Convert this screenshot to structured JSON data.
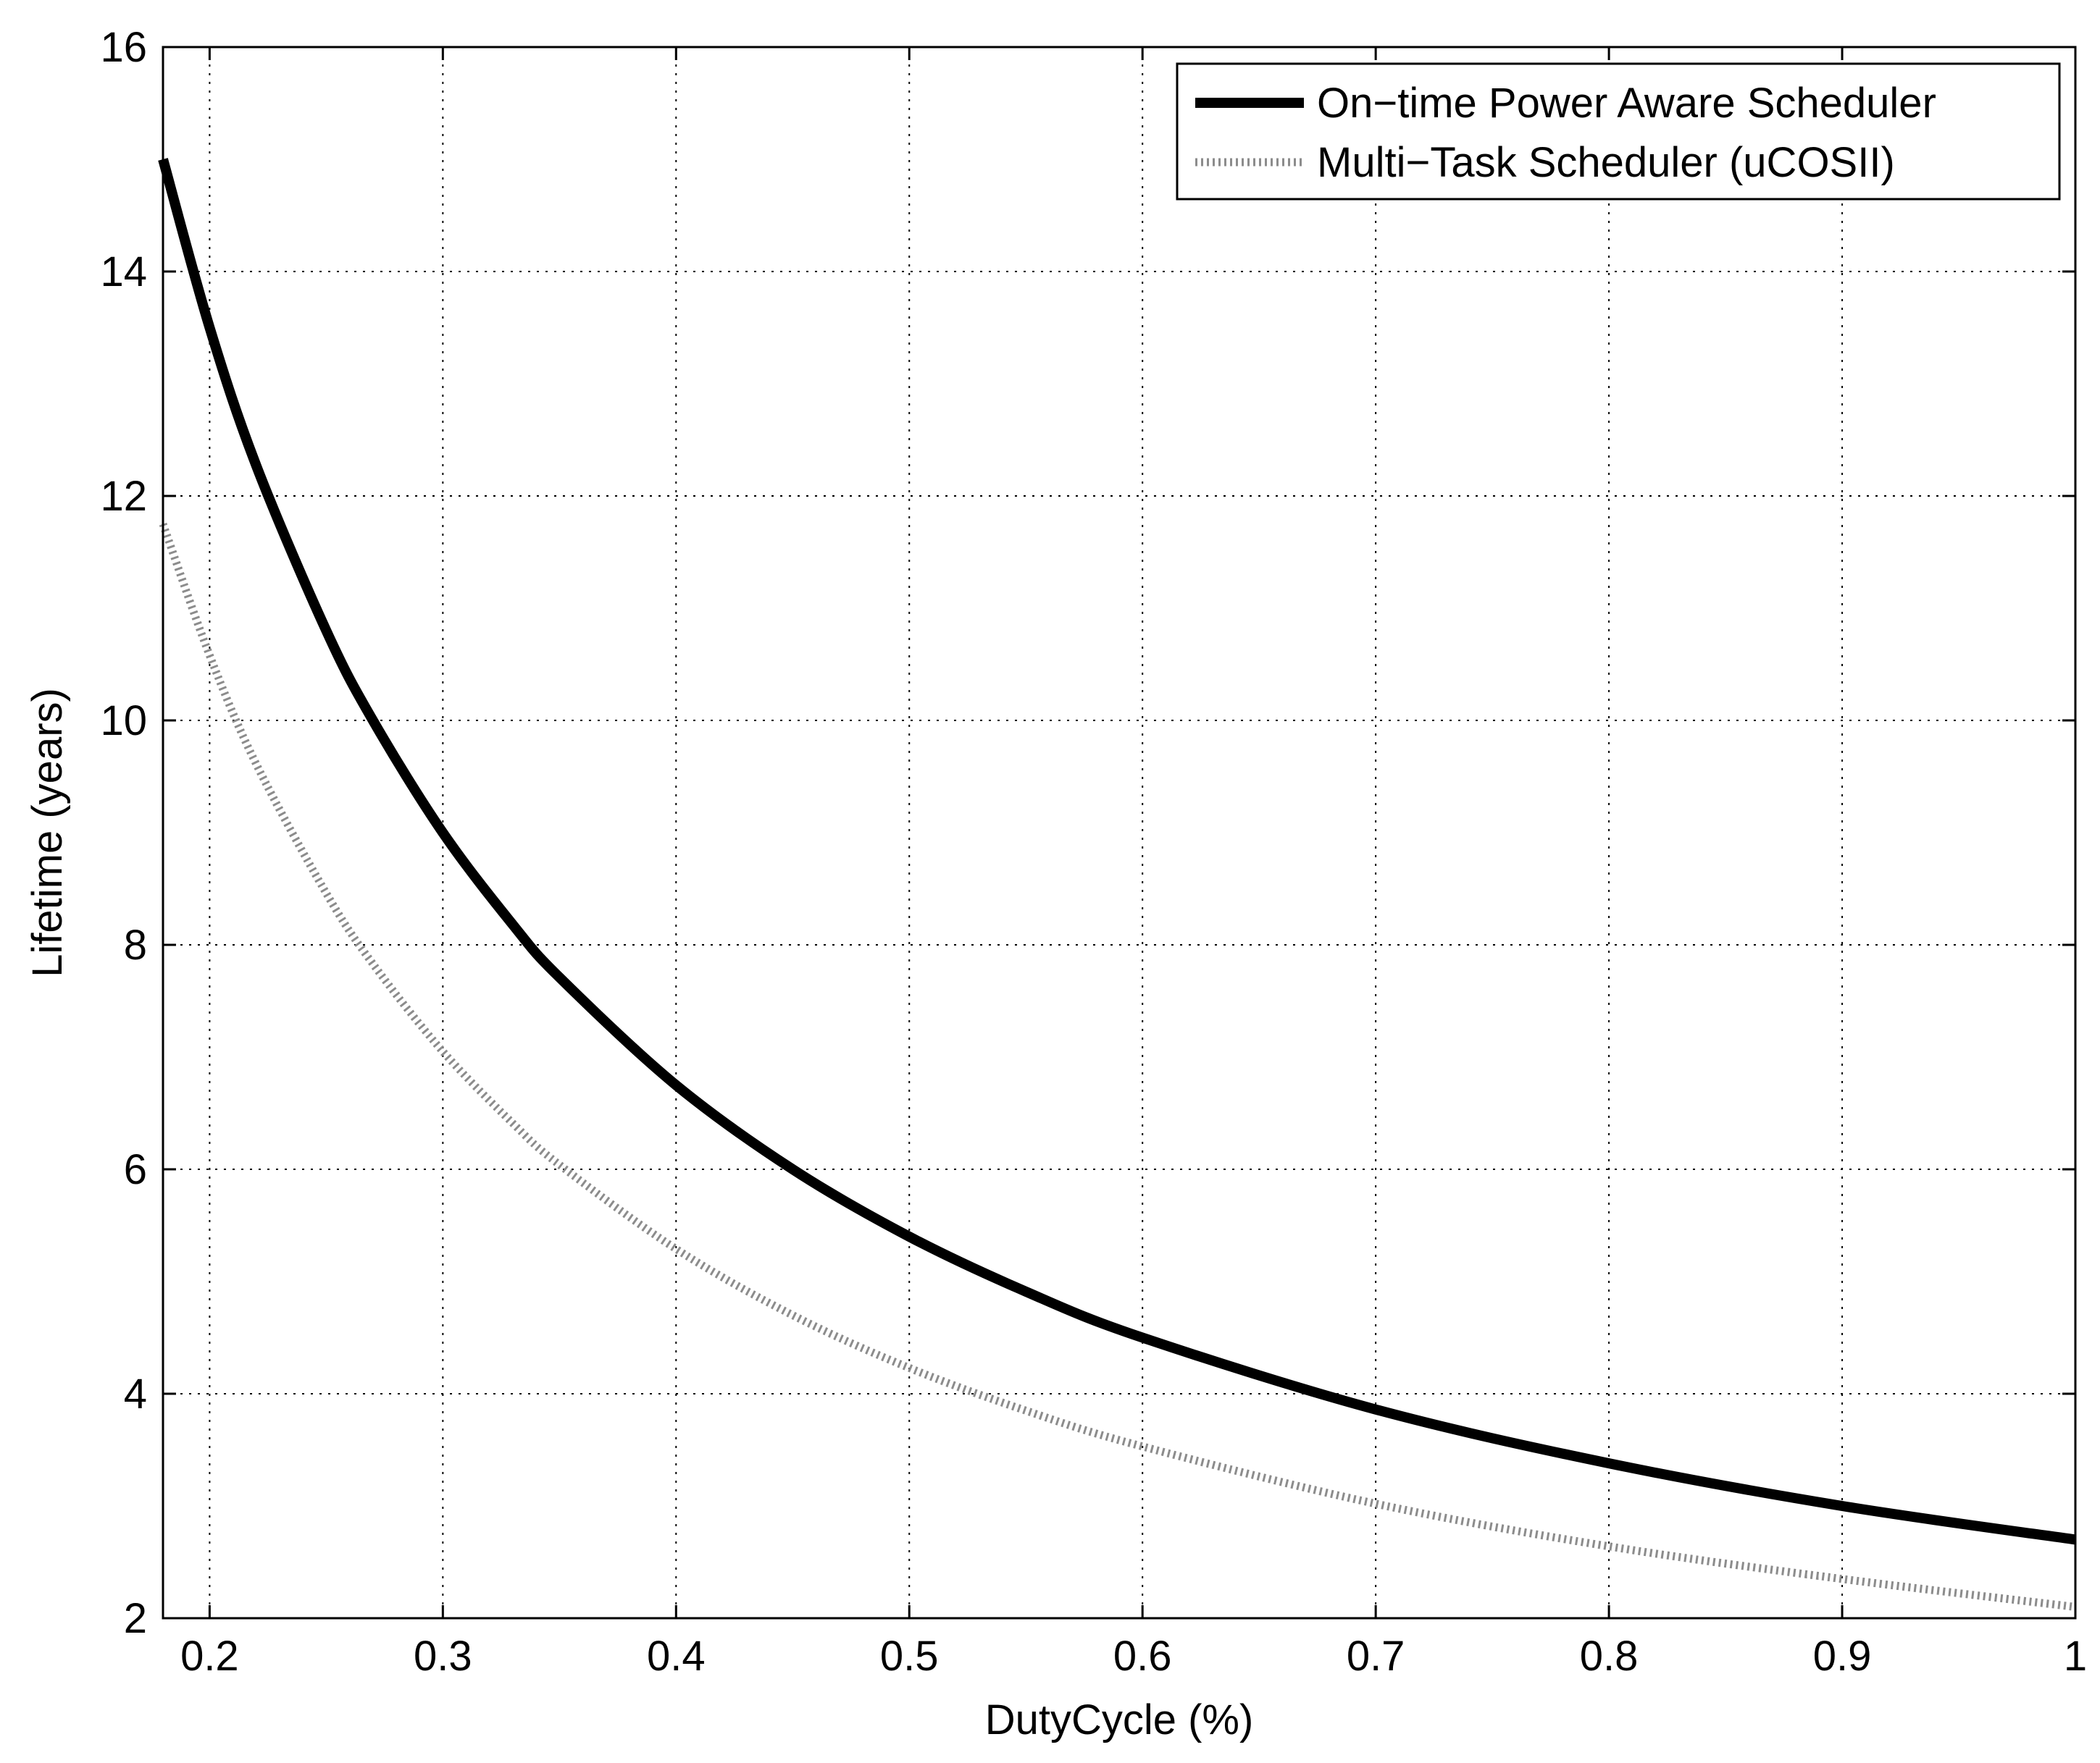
{
  "chart_data": {
    "type": "line",
    "title": "",
    "xlabel": "DutyCycle (%)",
    "ylabel": "Lifetime (years)",
    "xlim": [
      0.18,
      1.0
    ],
    "ylim": [
      2,
      16
    ],
    "xticks": [
      0.2,
      0.3,
      0.4,
      0.5,
      0.6,
      0.7,
      0.8,
      0.9,
      1.0
    ],
    "xtick_labels": [
      "0.2",
      "0.3",
      "0.4",
      "0.5",
      "0.6",
      "0.7",
      "0.8",
      "0.9",
      "1"
    ],
    "yticks": [
      2,
      4,
      6,
      8,
      10,
      12,
      14,
      16
    ],
    "ytick_labels": [
      "2",
      "4",
      "6",
      "8",
      "10",
      "12",
      "14",
      "16"
    ],
    "grid": true,
    "legend_position": "top-right",
    "series": [
      {
        "name": "On−time Power Aware Scheduler",
        "color": "#000000",
        "line_style": "solid",
        "x": [
          0.18,
          0.2,
          0.22,
          0.25,
          0.27,
          0.3,
          0.33,
          0.35,
          0.4,
          0.45,
          0.5,
          0.55,
          0.6,
          0.7,
          0.8,
          0.9,
          1.0
        ],
        "y": [
          15.0,
          13.5,
          12.27,
          10.8,
          10.0,
          9.0,
          8.18,
          7.71,
          6.75,
          6.0,
          5.4,
          4.91,
          4.5,
          3.86,
          3.38,
          3.0,
          2.7
        ]
      },
      {
        "name": "Multi−Task Scheduler (uCOSII)",
        "color": "#8c8c8c",
        "line_style": "dotted",
        "x": [
          0.18,
          0.2,
          0.22,
          0.25,
          0.27,
          0.3,
          0.33,
          0.35,
          0.4,
          0.45,
          0.5,
          0.55,
          0.6,
          0.7,
          0.8,
          0.9,
          1.0
        ],
        "y": [
          11.75,
          10.58,
          9.61,
          8.46,
          7.83,
          7.05,
          6.41,
          6.04,
          5.29,
          4.7,
          4.23,
          3.85,
          3.53,
          3.02,
          2.64,
          2.35,
          2.1
        ]
      }
    ]
  }
}
